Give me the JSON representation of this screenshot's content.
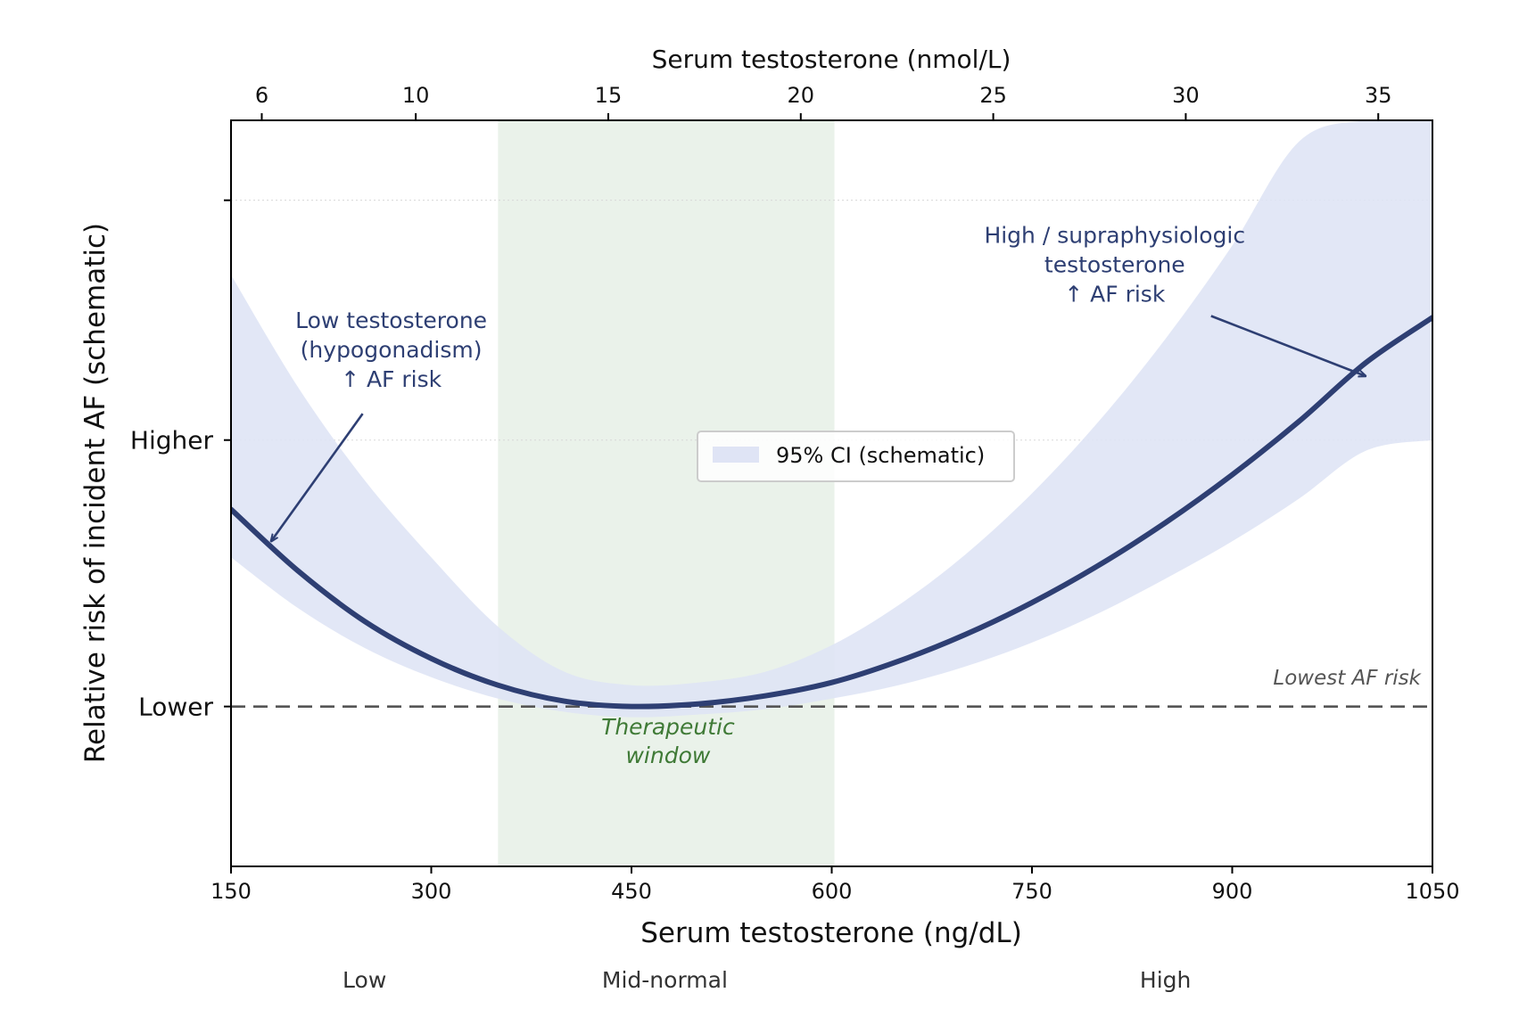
{
  "chart_data": {
    "type": "line",
    "title": "",
    "xlabel": "Serum testosterone (ng/dL)",
    "x2label": "Serum testosterone (nmol/L)",
    "ylabel": "Relative risk of incident AF  (schematic)",
    "xlim": [
      150,
      1050
    ],
    "ylim": [
      -0.6,
      2.2
    ],
    "x_ticks": [
      150,
      300,
      450,
      600,
      750,
      900,
      1050
    ],
    "x2_ticks": [
      6,
      10,
      15,
      20,
      25,
      30,
      35
    ],
    "x2_conversion_ng_dl_per_nmol_l": 28.84,
    "y_ticks": [
      {
        "value": 0,
        "label": "Lower"
      },
      {
        "value": 1,
        "label": "Higher"
      },
      {
        "value": 1.9,
        "label": ""
      }
    ],
    "grid": "y-dotted",
    "series": [
      {
        "name": "",
        "x": [
          150,
          200,
          250,
          300,
          350,
          400,
          450,
          500,
          550,
          600,
          650,
          700,
          750,
          800,
          850,
          900,
          950,
          1000,
          1050
        ],
        "y": [
          0.74,
          0.51,
          0.32,
          0.18,
          0.08,
          0.02,
          0.0,
          0.01,
          0.04,
          0.09,
          0.17,
          0.27,
          0.39,
          0.53,
          0.69,
          0.87,
          1.07,
          1.29,
          1.46
        ]
      }
    ],
    "ci_band": {
      "name": "95% CI (schematic)",
      "x": [
        150,
        200,
        250,
        300,
        350,
        400,
        450,
        500,
        550,
        600,
        650,
        700,
        750,
        800,
        850,
        900,
        950,
        1000,
        1050
      ],
      "lower": [
        0.56,
        0.37,
        0.22,
        0.11,
        0.03,
        -0.02,
        -0.04,
        -0.03,
        -0.01,
        0.03,
        0.08,
        0.15,
        0.24,
        0.35,
        0.48,
        0.62,
        0.78,
        0.96,
        1.0
      ],
      "upper": [
        1.62,
        1.2,
        0.85,
        0.56,
        0.3,
        0.13,
        0.08,
        0.09,
        0.13,
        0.23,
        0.38,
        0.57,
        0.8,
        1.07,
        1.38,
        1.73,
        2.12,
        2.2,
        2.2
      ]
    },
    "therapeutic_window": {
      "x": [
        350,
        602
      ],
      "label_lines": [
        "Therapeutic",
        "window"
      ]
    },
    "reference_line": {
      "y": 0,
      "style": "dashed",
      "label": "Lowest AF risk"
    },
    "annotations": [
      {
        "lines": [
          "Low testosterone",
          "(hypogonadism)",
          "↑ AF risk"
        ],
        "text_at": [
          270,
          1.42
        ],
        "arrow_to": [
          180,
          0.62
        ]
      },
      {
        "lines": [
          "High / supraphysiologic",
          "testosterone",
          "↑ AF risk"
        ],
        "text_at": [
          812,
          1.74
        ],
        "arrow_to": [
          1000,
          1.24
        ]
      }
    ],
    "region_labels": [
      {
        "text": "Low",
        "x": 250
      },
      {
        "text": "Mid-normal",
        "x": 475
      },
      {
        "text": "High",
        "x": 850
      }
    ],
    "legend": {
      "placement": "center",
      "entries": [
        "95% CI (schematic)"
      ]
    },
    "colors": {
      "line": "#2e3f73",
      "ci_band": "#dfe4f5",
      "therapeutic_window": "#e3eee3",
      "therapeutic_text": "#3f7a36",
      "annotation_text": "#2e3f73",
      "reference_line": "#555555"
    }
  }
}
